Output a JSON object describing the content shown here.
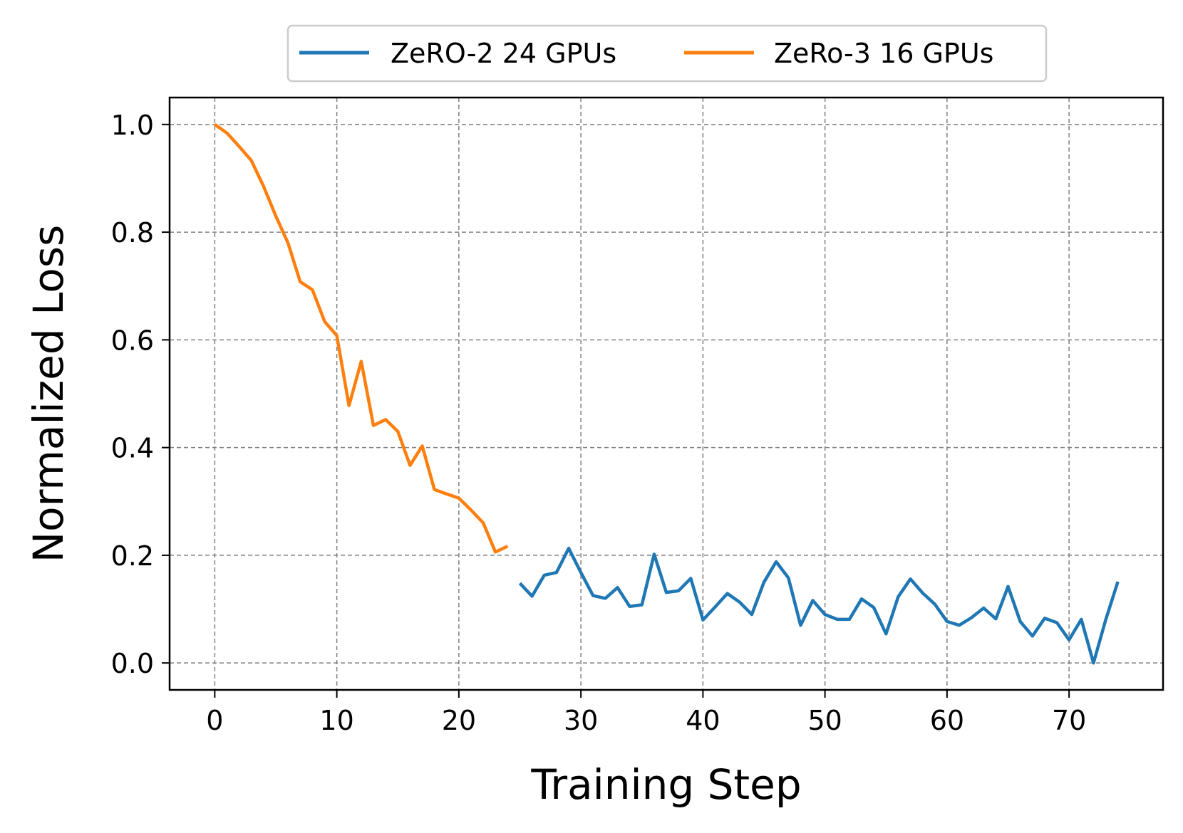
{
  "chart_data": {
    "type": "line",
    "xlabel": "Training Step",
    "ylabel": "Normalized Loss",
    "xlim": [
      -3.7,
      77.7
    ],
    "ylim": [
      -0.05,
      1.05
    ],
    "xticks": [
      0,
      10,
      20,
      30,
      40,
      50,
      60,
      70
    ],
    "yticks": [
      0.0,
      0.2,
      0.4,
      0.6,
      0.8,
      1.0
    ],
    "xtick_labels": [
      "0",
      "10",
      "20",
      "30",
      "40",
      "50",
      "60",
      "70"
    ],
    "ytick_labels": [
      "0.0",
      "0.2",
      "0.4",
      "0.6",
      "0.8",
      "1.0"
    ],
    "grid": true,
    "legend_position": "top-center, above plot",
    "series": [
      {
        "name": "ZeRO-2 24 GPUs",
        "color": "#1f77b4",
        "x": [
          25,
          26,
          27,
          28,
          29,
          30,
          31,
          32,
          33,
          34,
          35,
          36,
          37,
          38,
          39,
          40,
          41,
          42,
          43,
          44,
          45,
          46,
          47,
          48,
          49,
          50,
          51,
          52,
          53,
          54,
          55,
          56,
          57,
          58,
          59,
          60,
          61,
          62,
          63,
          64,
          65,
          66,
          67,
          68,
          69,
          70,
          71,
          72,
          73,
          74
        ],
        "y": [
          0.148,
          0.124,
          0.163,
          0.168,
          0.213,
          0.168,
          0.125,
          0.12,
          0.14,
          0.105,
          0.108,
          0.202,
          0.131,
          0.134,
          0.157,
          0.08,
          0.104,
          0.129,
          0.113,
          0.09,
          0.15,
          0.188,
          0.158,
          0.07,
          0.116,
          0.09,
          0.081,
          0.081,
          0.119,
          0.103,
          0.054,
          0.123,
          0.156,
          0.13,
          0.109,
          0.077,
          0.07,
          0.084,
          0.102,
          0.082,
          0.142,
          0.077,
          0.05,
          0.083,
          0.075,
          0.043,
          0.081,
          0.0,
          0.08,
          0.151
        ]
      },
      {
        "name": "ZeRo-3 16 GPUs",
        "color": "#ff7f0e",
        "x": [
          0,
          1,
          2,
          3,
          4,
          5,
          6,
          7,
          8,
          9,
          10,
          11,
          12,
          13,
          14,
          15,
          16,
          17,
          18,
          19,
          20,
          21,
          22,
          23,
          24
        ],
        "y": [
          1.0,
          0.984,
          0.959,
          0.933,
          0.885,
          0.83,
          0.78,
          0.708,
          0.693,
          0.634,
          0.608,
          0.478,
          0.56,
          0.441,
          0.452,
          0.43,
          0.367,
          0.403,
          0.322,
          0.314,
          0.306,
          0.284,
          0.26,
          0.206,
          0.217
        ]
      }
    ]
  }
}
